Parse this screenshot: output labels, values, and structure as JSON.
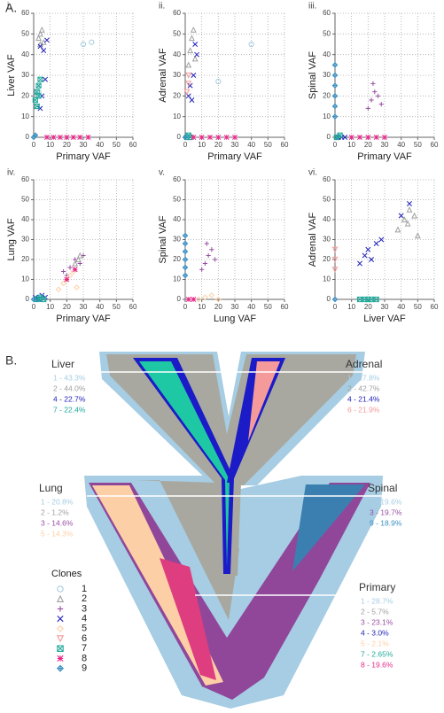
{
  "panel_a_label": "A.",
  "chart_data": [
    {
      "type": "scatter",
      "panel": "i.",
      "x_label": "Primary VAF",
      "y_label": "Liver VAF",
      "xlim": [
        0,
        60
      ],
      "ylim": [
        0,
        60
      ],
      "xticks": [
        0,
        10,
        20,
        30,
        40,
        50,
        60
      ],
      "yticks": [
        0,
        10,
        20,
        30,
        40,
        50,
        60
      ],
      "grid": true,
      "series": [
        {
          "color": "#a6cde3",
          "marker": "circle",
          "x": [
            2,
            3,
            30,
            35
          ],
          "values": [
            20,
            22,
            45,
            46
          ]
        },
        {
          "color": "#a0a0a0",
          "marker": "triangle",
          "x": [
            3,
            4,
            5,
            6,
            4
          ],
          "values": [
            48,
            50,
            52,
            46,
            45
          ]
        },
        {
          "color": "#2222bb",
          "marker": "x",
          "x": [
            4,
            6,
            8,
            3,
            5,
            7,
            4
          ],
          "values": [
            44,
            42,
            47,
            25,
            20,
            28,
            14
          ]
        },
        {
          "color": "#1fa89a",
          "marker": "square-x",
          "x": [
            1,
            2,
            3,
            4,
            2,
            3
          ],
          "values": [
            18,
            22,
            25,
            28,
            15,
            20
          ]
        },
        {
          "color": "#e7298a",
          "marker": "asterisk",
          "x": [
            8,
            12,
            16,
            20,
            24,
            28,
            33
          ],
          "values": [
            0,
            0,
            0,
            0,
            0,
            0,
            0
          ]
        },
        {
          "color": "#3a8fc0",
          "marker": "diamond-plus",
          "x": [
            0,
            1
          ],
          "values": [
            0,
            1
          ]
        }
      ]
    },
    {
      "type": "scatter",
      "panel": "ii.",
      "x_label": "Primary VAF",
      "y_label": "Adrenal VAF",
      "xlim": [
        0,
        60
      ],
      "ylim": [
        0,
        60
      ],
      "xticks": [
        0,
        10,
        20,
        30,
        40,
        50,
        60
      ],
      "yticks": [
        0,
        10,
        20,
        30,
        40,
        50,
        60
      ],
      "grid": true,
      "series": [
        {
          "color": "#a6cde3",
          "marker": "circle",
          "x": [
            20,
            40
          ],
          "values": [
            27,
            45
          ]
        },
        {
          "color": "#a0a0a0",
          "marker": "triangle",
          "x": [
            2,
            3,
            4,
            5,
            6
          ],
          "values": [
            35,
            42,
            48,
            52,
            38
          ]
        },
        {
          "color": "#2222bb",
          "marker": "x",
          "x": [
            2,
            3,
            5,
            6,
            7,
            4
          ],
          "values": [
            20,
            25,
            30,
            45,
            40,
            18
          ]
        },
        {
          "color": "#f49a9a",
          "marker": "triangle-down",
          "x": [
            1,
            2,
            2
          ],
          "values": [
            22,
            26,
            30
          ]
        },
        {
          "color": "#1fa89a",
          "marker": "square-x",
          "x": [
            1,
            2,
            3
          ],
          "values": [
            0,
            1,
            0
          ]
        },
        {
          "color": "#e7298a",
          "marker": "asterisk",
          "x": [
            5,
            10,
            15,
            20,
            25,
            30
          ],
          "values": [
            0,
            0,
            0,
            0,
            0,
            0
          ]
        },
        {
          "color": "#3a8fc0",
          "marker": "diamond-plus",
          "x": [
            0
          ],
          "values": [
            0
          ]
        }
      ]
    },
    {
      "type": "scatter",
      "panel": "iii.",
      "x_label": "Primary VAF",
      "y_label": "Spinal VAF",
      "xlim": [
        0,
        60
      ],
      "ylim": [
        0,
        60
      ],
      "xticks": [
        0,
        10,
        20,
        30,
        40,
        50,
        60
      ],
      "yticks": [
        0,
        10,
        20,
        30,
        40,
        50,
        60
      ],
      "grid": true,
      "series": [
        {
          "color": "#3a8fc0",
          "marker": "diamond-plus",
          "x": [
            0,
            0,
            0,
            0,
            0,
            0
          ],
          "values": [
            10,
            15,
            20,
            25,
            30,
            35
          ]
        },
        {
          "color": "#984ea3",
          "marker": "plus",
          "x": [
            20,
            22,
            24,
            26,
            28,
            23
          ],
          "values": [
            14,
            18,
            22,
            20,
            16,
            26
          ]
        },
        {
          "color": "#2222bb",
          "marker": "x",
          "x": [
            2,
            4,
            6
          ],
          "values": [
            0,
            0,
            0
          ]
        },
        {
          "color": "#1fa89a",
          "marker": "square-x",
          "x": [
            1,
            3
          ],
          "values": [
            0,
            1
          ]
        },
        {
          "color": "#e7298a",
          "marker": "asterisk",
          "x": [
            10,
            15,
            20,
            25,
            30
          ],
          "values": [
            0,
            0,
            0,
            0,
            0
          ]
        }
      ]
    },
    {
      "type": "scatter",
      "panel": "iv.",
      "x_label": "Primary VAF",
      "y_label": "Lung VAF",
      "xlim": [
        0,
        60
      ],
      "ylim": [
        0,
        60
      ],
      "xticks": [
        0,
        10,
        20,
        30,
        40,
        50,
        60
      ],
      "yticks": [
        0,
        10,
        20,
        30,
        40,
        50,
        60
      ],
      "grid": true,
      "series": [
        {
          "color": "#984ea3",
          "marker": "plus",
          "x": [
            18,
            22,
            25,
            28,
            30,
            20
          ],
          "values": [
            14,
            16,
            20,
            18,
            22,
            12
          ]
        },
        {
          "color": "#fdcfa6",
          "marker": "diamond",
          "x": [
            15,
            18,
            20,
            22,
            24,
            26
          ],
          "values": [
            5,
            8,
            10,
            12,
            14,
            6
          ]
        },
        {
          "color": "#a0a0a0",
          "marker": "triangle",
          "x": [
            25,
            27,
            28
          ],
          "values": [
            18,
            20,
            22
          ]
        },
        {
          "color": "#2222bb",
          "marker": "x",
          "x": [
            1,
            3,
            5,
            7
          ],
          "values": [
            1,
            0,
            2,
            1
          ]
        },
        {
          "color": "#1fa89a",
          "marker": "square-x",
          "x": [
            2,
            4,
            6
          ],
          "values": [
            0,
            1,
            0
          ]
        },
        {
          "color": "#e7298a",
          "marker": "asterisk",
          "x": [
            20,
            25
          ],
          "values": [
            10,
            15
          ]
        },
        {
          "color": "#3a8fc0",
          "marker": "diamond-plus",
          "x": [
            0
          ],
          "values": [
            0
          ]
        }
      ]
    },
    {
      "type": "scatter",
      "panel": "v.",
      "x_label": "Lung VAF",
      "y_label": "Spinal VAF",
      "xlim": [
        0,
        60
      ],
      "ylim": [
        0,
        60
      ],
      "xticks": [
        0,
        10,
        20,
        30,
        40,
        50,
        60
      ],
      "yticks": [
        0,
        10,
        20,
        30,
        40,
        50,
        60
      ],
      "grid": true,
      "series": [
        {
          "color": "#3a8fc0",
          "marker": "diamond-plus",
          "x": [
            0,
            0,
            0,
            0,
            0,
            0
          ],
          "values": [
            12,
            16,
            20,
            24,
            28,
            32
          ]
        },
        {
          "color": "#984ea3",
          "marker": "plus",
          "x": [
            10,
            12,
            14,
            16,
            18,
            13
          ],
          "values": [
            15,
            18,
            22,
            25,
            20,
            28
          ]
        },
        {
          "color": "#fdcfa6",
          "marker": "diamond",
          "x": [
            8,
            12,
            16,
            20
          ],
          "values": [
            0,
            1,
            2,
            0
          ]
        },
        {
          "color": "#e7298a",
          "marker": "asterisk",
          "x": [
            2,
            5
          ],
          "values": [
            0,
            0
          ]
        }
      ]
    },
    {
      "type": "scatter",
      "panel": "vi.",
      "x_label": "Liver VAF",
      "y_label": "Adrenal VAF",
      "xlim": [
        0,
        60
      ],
      "ylim": [
        0,
        60
      ],
      "xticks": [
        0,
        10,
        20,
        30,
        40,
        50,
        60
      ],
      "yticks": [
        0,
        10,
        20,
        30,
        40,
        50,
        60
      ],
      "grid": true,
      "series": [
        {
          "color": "#a0a0a0",
          "marker": "triangle",
          "x": [
            38,
            42,
            45,
            48,
            50,
            44
          ],
          "values": [
            35,
            40,
            45,
            42,
            32,
            38
          ]
        },
        {
          "color": "#2222bb",
          "marker": "x",
          "x": [
            15,
            18,
            20,
            22,
            25,
            28,
            40,
            45
          ],
          "values": [
            18,
            22,
            25,
            20,
            28,
            30,
            42,
            48
          ]
        },
        {
          "color": "#f49a9a",
          "marker": "triangle-down",
          "x": [
            0,
            0,
            0
          ],
          "values": [
            15,
            20,
            25
          ]
        },
        {
          "color": "#1fa89a",
          "marker": "square-x",
          "x": [
            15,
            18,
            20,
            22,
            25
          ],
          "values": [
            0,
            0,
            0,
            0,
            0
          ]
        },
        {
          "color": "#3a8fc0",
          "marker": "diamond-plus",
          "x": [
            0
          ],
          "values": [
            0
          ]
        }
      ]
    }
  ],
  "panel_b_label": "B.",
  "sites": [
    {
      "name": "Liver",
      "clones": [
        {
          "text": "1 - 43.3%",
          "color": "#a6cde3"
        },
        {
          "text": "2 - 44.0%",
          "color": "#a0a0a0"
        },
        {
          "text": "4 - 22.7%",
          "color": "#2222bb"
        },
        {
          "text": "7 - 22.4%",
          "color": "#1fa89a"
        }
      ]
    },
    {
      "name": "Adrenal",
      "clones": [
        {
          "text": "1 - 27.8%",
          "color": "#a6cde3"
        },
        {
          "text": "2 - 42.7%",
          "color": "#a0a0a0"
        },
        {
          "text": "4 - 21.4%",
          "color": "#2222bb"
        },
        {
          "text": "6 - 21.9%",
          "color": "#f49a9a"
        }
      ]
    },
    {
      "name": "Lung",
      "clones": [
        {
          "text": "1 - 20.8%",
          "color": "#a6cde3"
        },
        {
          "text": "2 - 1.2%",
          "color": "#a0a0a0"
        },
        {
          "text": "3 - 14.6%",
          "color": "#984ea3"
        },
        {
          "text": "5 - 14.3%",
          "color": "#fdcfa6"
        }
      ]
    },
    {
      "name": "Spinal",
      "clones": [
        {
          "text": "1 - 19.6%",
          "color": "#a6cde3"
        },
        {
          "text": "3 - 19.7%",
          "color": "#984ea3"
        },
        {
          "text": "9 - 18.9%",
          "color": "#3a8fc0"
        }
      ]
    },
    {
      "name": "Primary",
      "clones": [
        {
          "text": "1 - 28.7%",
          "color": "#a6cde3"
        },
        {
          "text": "2 - 5.7%",
          "color": "#a0a0a0"
        },
        {
          "text": "3 - 23.1%",
          "color": "#984ea3"
        },
        {
          "text": "4 - 3.0%",
          "color": "#2222bb"
        },
        {
          "text": "5 - 2.1%",
          "color": "#fdcfa6"
        },
        {
          "text": "7 - 2.65%",
          "color": "#1fa89a"
        },
        {
          "text": "8 - 19.6%",
          "color": "#e7298a"
        }
      ]
    }
  ],
  "clone_legend": {
    "title": "Clones",
    "items": [
      {
        "label": "1",
        "color": "#a6cde3",
        "marker": "circle"
      },
      {
        "label": "2",
        "color": "#a0a0a0",
        "marker": "triangle"
      },
      {
        "label": "3",
        "color": "#984ea3",
        "marker": "plus"
      },
      {
        "label": "4",
        "color": "#2222bb",
        "marker": "x"
      },
      {
        "label": "5",
        "color": "#fdcfa6",
        "marker": "diamond"
      },
      {
        "label": "6",
        "color": "#f49a9a",
        "marker": "triangle-down"
      },
      {
        "label": "7",
        "color": "#1fa89a",
        "marker": "square-x"
      },
      {
        "label": "8",
        "color": "#e7298a",
        "marker": "asterisk"
      },
      {
        "label": "9",
        "color": "#3a8fc0",
        "marker": "diamond-plus"
      }
    ]
  }
}
